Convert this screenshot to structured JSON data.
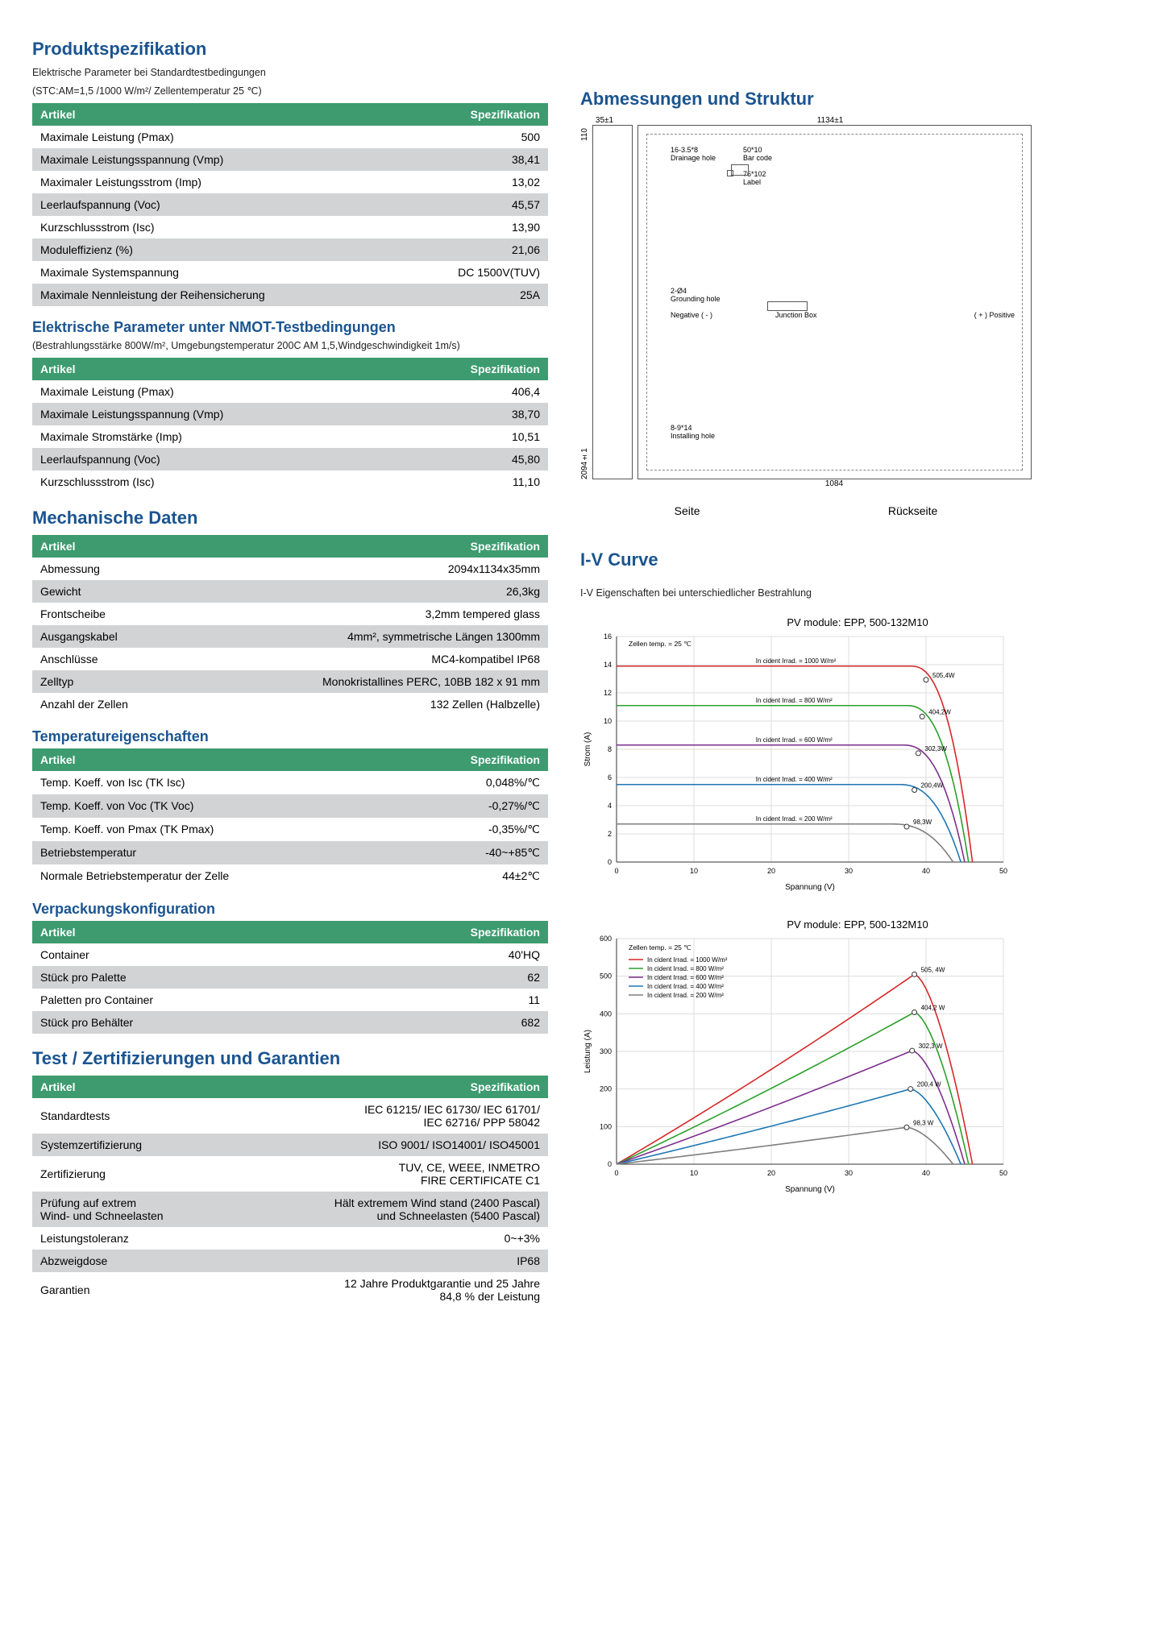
{
  "left": {
    "title": "Produktspezifikation",
    "stc_note1": "Elektrische Parameter bei Standardtestbedingungen",
    "stc_note2": "(STC:AM=1,5 /1000 W/m²/ Zellentemperatur 25 ℃)",
    "col_artikel": "Artikel",
    "col_spez": "Spezifikation",
    "table1": [
      [
        "Maximale Leistung (Pmax)",
        "500"
      ],
      [
        "Maximale Leistungsspannung (Vmp)",
        "38,41"
      ],
      [
        "Maximaler Leistungsstrom (Imp)",
        "13,02"
      ],
      [
        "Leerlaufspannung (Voc)",
        "45,57"
      ],
      [
        "Kurzschlussstrom (Isc)",
        "13,90"
      ],
      [
        "Moduleffizienz (%)",
        "21,06"
      ],
      [
        "Maximale Systemspannung",
        "DC 1500V(TUV)"
      ],
      [
        "Maximale Nennleistung der Reihensicherung",
        "25A"
      ]
    ],
    "nmot_title": "Elektrische Parameter unter NMOT-Testbedingungen",
    "nmot_note": "(Bestrahlungsstärke 800W/m², Umgebungstemperatur 200C AM 1,5,Windgeschwindigkeit 1m/s)",
    "table2": [
      [
        "Maximale Leistung (Pmax)",
        "406,4"
      ],
      [
        "Maximale Leistungsspannung (Vmp)",
        "38,70"
      ],
      [
        "Maximale Stromstärke (Imp)",
        "10,51"
      ],
      [
        "Leerlaufspannung (Voc)",
        "45,80"
      ],
      [
        "Kurzschlussstrom (Isc)",
        "11,10"
      ]
    ],
    "mech_title": "Mechanische Daten",
    "table3": [
      [
        "Abmessung",
        "2094x1134x35mm"
      ],
      [
        "Gewicht",
        "26,3kg"
      ],
      [
        "Frontscheibe",
        "3,2mm tempered glass"
      ],
      [
        "Ausgangskabel",
        "4mm², symmetrische Längen 1300mm"
      ],
      [
        "Anschlüsse",
        "MC4-kompatibel IP68"
      ],
      [
        "Zelltyp",
        "Monokristallines PERC, 10BB 182 x 91 mm"
      ],
      [
        "Anzahl der Zellen",
        "132 Zellen (Halbzelle)"
      ]
    ],
    "temp_title": "Temperatureigenschaften",
    "table4": [
      [
        "Temp. Koeff. von Isc (TK Isc)",
        "0,048%/℃"
      ],
      [
        "Temp. Koeff. von Voc (TK Voc)",
        "-0,27%/℃"
      ],
      [
        "Temp. Koeff. von Pmax (TK Pmax)",
        "-0,35%/℃"
      ],
      [
        "Betriebstemperatur",
        "-40~+85℃"
      ],
      [
        "Normale Betriebstemperatur der Zelle",
        "44±2℃"
      ]
    ],
    "pack_title": "Verpackungskonfiguration",
    "table5": [
      [
        "Container",
        "40'HQ"
      ],
      [
        "Stück pro Palette",
        "62"
      ],
      [
        "Paletten pro Container",
        "11"
      ],
      [
        "Stück pro Behälter",
        "682"
      ]
    ],
    "cert_title": "Test / Zertifizierungen und Garantien",
    "table6": [
      [
        "Standardtests",
        "IEC 61215/ IEC 61730/ IEC 61701/\nIEC 62716/ PPP 58042"
      ],
      [
        "Systemzertifizierung",
        "ISO 9001/ ISO14001/ ISO45001"
      ],
      [
        "Zertifizierung",
        "TUV, CE, WEEE, INMETRO\nFIRE CERTIFICATE C1"
      ],
      [
        "Prüfung auf extrem\nWind- und Schneelasten",
        "Hält extremem Wind stand (2400 Pascal)\nund Schneelasten (5400 Pascal)"
      ],
      [
        "Leistungstoleranz",
        "0~+3%"
      ],
      [
        "Abzweigdose",
        "IP68"
      ],
      [
        "Garantien",
        "12 Jahre Produktgarantie und 25 Jahre\n84,8 % der Leistung"
      ]
    ]
  },
  "right": {
    "dim_title": "Abmessungen und Struktur",
    "dim_w": "1134±1",
    "dim_frame": "35±1",
    "dim_h": "2094±1",
    "dim_bottom": "1084",
    "dim_drain": "16-3.5*8\nDrainage hole",
    "dim_barcode": "50*10\nBar code",
    "dim_label": "76*102\nLabel",
    "dim_ground": "2-Ø4\nGrounding hole",
    "dim_neg": "Negative ( - )",
    "dim_jbox": "Junction Box",
    "dim_pos": "( + ) Positive",
    "dim_install": "8-9*14\nInstalling hole",
    "side_label": "Seite",
    "back_label": "Rückseite",
    "iv_title": "I-V Curve",
    "iv_note": "I-V Eigenschaften bei unterschiedlicher Bestrahlung",
    "chart_title": "PV module: EPP, 500-132M10",
    "cell_temp": "Zellen temp. = 25 ℃",
    "legend": [
      {
        "label": "In cident Irrad. = 1000 W/m²",
        "color": "#d62728",
        "peak": "505,4W",
        "peak2": "505, 4W"
      },
      {
        "label": "In cident Irrad. = 800 W/m²",
        "color": "#2ca02c",
        "peak": "404,2W",
        "peak2": "404,2 W"
      },
      {
        "label": "In cident Irrad. = 600 W/m²",
        "color": "#7e2f8e",
        "peak": "302,3W",
        "peak2": "302,3 W"
      },
      {
        "label": "In cident Irrad. = 400 W/m²",
        "color": "#1f77b4",
        "peak": "200,4W",
        "peak2": "200,4 W"
      },
      {
        "label": "In cident Irrad. = 200 W/m²",
        "color": "#7f7f7f",
        "peak": "98,3W",
        "peak2": "98,3 W"
      }
    ],
    "iv_chart": {
      "xlim": [
        0,
        50
      ],
      "xticks": [
        0,
        10,
        20,
        30,
        40,
        50
      ],
      "ylim": [
        0,
        16
      ],
      "yticks": [
        0,
        2,
        4,
        6,
        8,
        10,
        12,
        14,
        16
      ],
      "xlabel": "Spannung (V)",
      "ylabel": "Strom (A)",
      "curves": [
        {
          "color": "#d62728",
          "plateau": 13.9,
          "voc": 46
        },
        {
          "color": "#2ca02c",
          "plateau": 11.1,
          "voc": 45.5
        },
        {
          "color": "#7e2f8e",
          "plateau": 8.3,
          "voc": 45
        },
        {
          "color": "#1f77b4",
          "plateau": 5.5,
          "voc": 44.5
        },
        {
          "color": "#7f7f7f",
          "plateau": 2.7,
          "voc": 43.5
        }
      ]
    },
    "pv_chart": {
      "xlim": [
        0,
        50
      ],
      "xticks": [
        0,
        10,
        20,
        30,
        40,
        50
      ],
      "ylim": [
        0,
        600
      ],
      "yticks": [
        0,
        100,
        200,
        300,
        400,
        500,
        600
      ],
      "xlabel": "Spannung (V)",
      "ylabel": "Leistung (A)",
      "curves": [
        {
          "color": "#d62728",
          "peak_y": 505,
          "peak_x": 38.5,
          "voc": 46
        },
        {
          "color": "#2ca02c",
          "peak_y": 404,
          "peak_x": 38.5,
          "voc": 45.5
        },
        {
          "color": "#7e2f8e",
          "peak_y": 302,
          "peak_x": 38.2,
          "voc": 45
        },
        {
          "color": "#1f77b4",
          "peak_y": 200,
          "peak_x": 38,
          "voc": 44.5
        },
        {
          "color": "#7f7f7f",
          "peak_y": 98,
          "peak_x": 37.5,
          "voc": 43.5
        }
      ]
    }
  }
}
